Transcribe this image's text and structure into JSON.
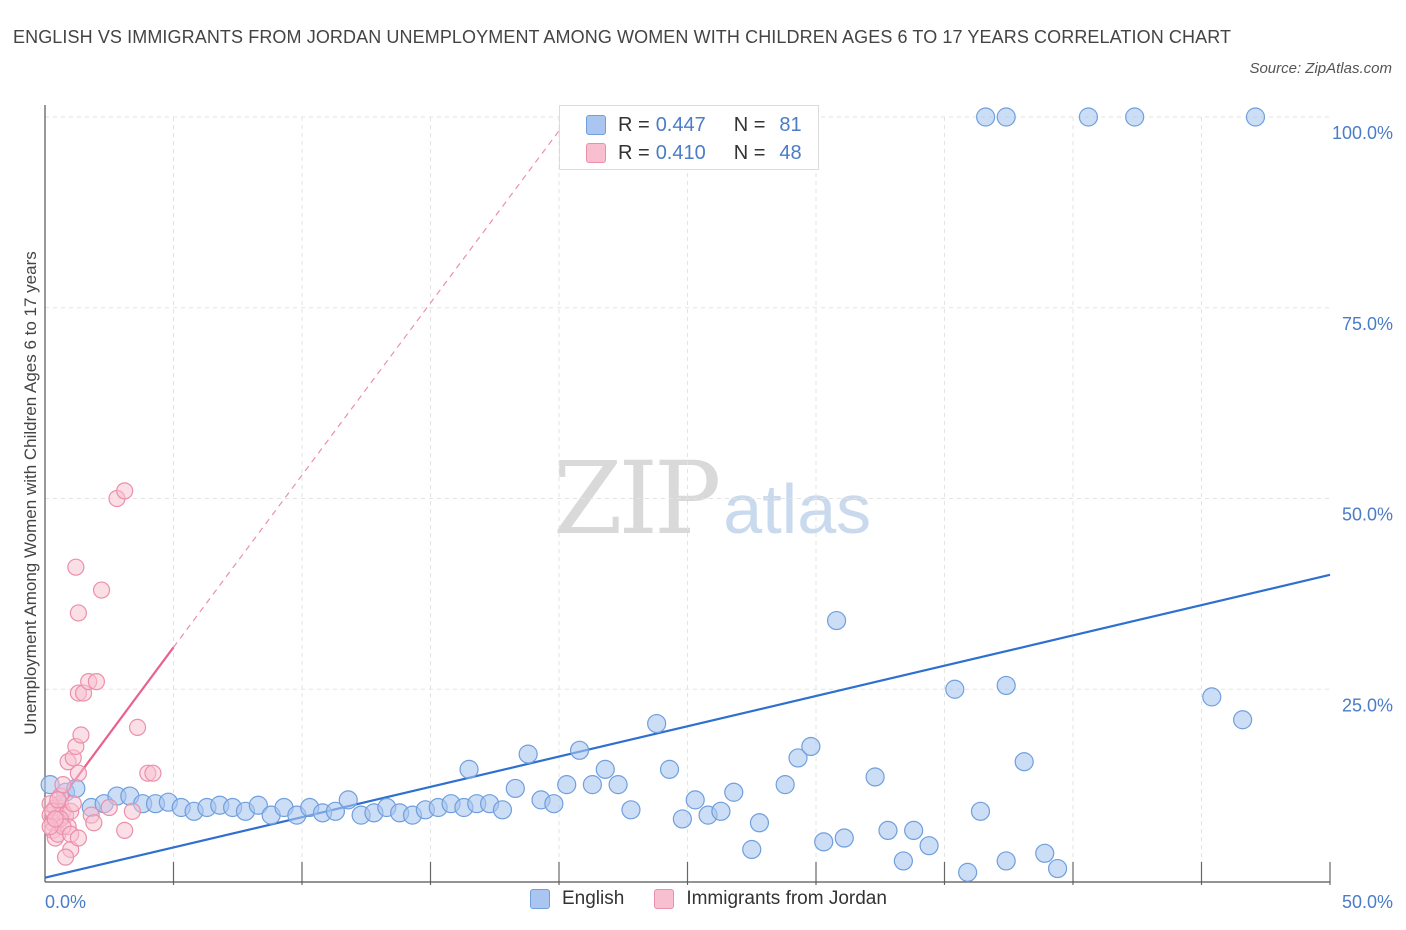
{
  "title": "ENGLISH VS IMMIGRANTS FROM JORDAN UNEMPLOYMENT AMONG WOMEN WITH CHILDREN AGES 6 TO 17 YEARS CORRELATION CHART",
  "source": "Source: ZipAtlas.com",
  "watermark": {
    "zip": "ZIP",
    "atlas": "atlas"
  },
  "colors": {
    "english_fill": "#aac6f0",
    "english_stroke": "#6f9fdd",
    "english_line": "#2f6fd0",
    "jordan_fill": "#f7bfd0",
    "jordan_stroke": "#ec8fab",
    "jordan_line": "#e8628c",
    "tick_label": "#4a7cc7",
    "grid": "#e3e3e3"
  },
  "legend": {
    "rows": [
      {
        "r_label": "R =",
        "r_value": "0.447",
        "n_label": "N =",
        "n_value": "81"
      },
      {
        "r_label": "R =",
        "r_value": "0.410",
        "n_label": "N =",
        "n_value": "48"
      }
    ]
  },
  "bottom_legend": [
    "English",
    "Immigrants from Jordan"
  ],
  "chart_data": {
    "type": "scatter",
    "title": "ENGLISH VS IMMIGRANTS FROM JORDAN UNEMPLOYMENT AMONG WOMEN WITH CHILDREN AGES 6 TO 17 YEARS CORRELATION CHART",
    "xlabel": "",
    "ylabel": "Unemployment Among Women with Children Ages 6 to 17 years",
    "xlim": [
      0,
      50
    ],
    "ylim": [
      0,
      100
    ],
    "x_tick_labels": [
      "0.0%",
      "50.0%"
    ],
    "y_ticks": [
      25,
      50,
      75,
      100
    ],
    "y_tick_labels": [
      "25.0%",
      "50.0%",
      "75.0%",
      "100.0%"
    ],
    "grid": true,
    "legend_position": "top-center",
    "series": [
      {
        "name": "English",
        "r": 0.447,
        "n": 81,
        "trend": {
          "x": [
            0,
            50
          ],
          "y": [
            0.3,
            40.0
          ]
        },
        "points": [
          [
            0.2,
            12.5
          ],
          [
            0.8,
            11.5
          ],
          [
            1.2,
            12.0
          ],
          [
            1.8,
            9.5
          ],
          [
            2.3,
            10.0
          ],
          [
            2.8,
            11.0
          ],
          [
            3.3,
            11.0
          ],
          [
            3.8,
            10.0
          ],
          [
            4.3,
            10.0
          ],
          [
            4.8,
            10.2
          ],
          [
            5.3,
            9.5
          ],
          [
            5.8,
            9.0
          ],
          [
            6.3,
            9.5
          ],
          [
            6.8,
            9.8
          ],
          [
            7.3,
            9.5
          ],
          [
            7.8,
            9.0
          ],
          [
            8.3,
            9.8
          ],
          [
            8.8,
            8.5
          ],
          [
            9.3,
            9.5
          ],
          [
            9.8,
            8.5
          ],
          [
            10.3,
            9.5
          ],
          [
            10.8,
            8.8
          ],
          [
            11.3,
            9.0
          ],
          [
            11.8,
            10.5
          ],
          [
            12.3,
            8.5
          ],
          [
            12.8,
            8.8
          ],
          [
            13.3,
            9.5
          ],
          [
            13.8,
            8.8
          ],
          [
            14.3,
            8.5
          ],
          [
            14.8,
            9.2
          ],
          [
            15.3,
            9.5
          ],
          [
            15.8,
            10.0
          ],
          [
            16.3,
            9.5
          ],
          [
            16.8,
            10.0
          ],
          [
            16.5,
            14.5
          ],
          [
            17.3,
            10.0
          ],
          [
            17.8,
            9.2
          ],
          [
            18.3,
            12.0
          ],
          [
            18.8,
            16.5
          ],
          [
            19.3,
            10.5
          ],
          [
            19.8,
            10.0
          ],
          [
            20.3,
            12.5
          ],
          [
            20.8,
            17.0
          ],
          [
            21.3,
            12.5
          ],
          [
            21.8,
            14.5
          ],
          [
            22.3,
            12.5
          ],
          [
            22.8,
            9.2
          ],
          [
            23.8,
            20.5
          ],
          [
            24.3,
            14.5
          ],
          [
            24.8,
            8.0
          ],
          [
            25.3,
            10.5
          ],
          [
            25.8,
            8.5
          ],
          [
            26.3,
            9.0
          ],
          [
            26.8,
            11.5
          ],
          [
            27.5,
            4.0
          ],
          [
            27.8,
            7.5
          ],
          [
            28.8,
            12.5
          ],
          [
            29.3,
            16.0
          ],
          [
            29.8,
            17.5
          ],
          [
            30.3,
            5.0
          ],
          [
            30.8,
            34.0
          ],
          [
            31.1,
            5.5
          ],
          [
            32.3,
            13.5
          ],
          [
            32.8,
            6.5
          ],
          [
            33.4,
            2.5
          ],
          [
            33.8,
            6.5
          ],
          [
            34.4,
            4.5
          ],
          [
            35.4,
            25.0
          ],
          [
            35.9,
            1.0
          ],
          [
            36.4,
            9.0
          ],
          [
            37.4,
            2.5
          ],
          [
            37.4,
            25.5
          ],
          [
            38.1,
            15.5
          ],
          [
            38.9,
            3.5
          ],
          [
            39.4,
            1.5
          ],
          [
            45.4,
            24.0
          ],
          [
            46.6,
            21.0
          ],
          [
            36.6,
            100
          ],
          [
            37.4,
            100
          ],
          [
            40.6,
            100
          ],
          [
            42.4,
            100
          ],
          [
            47.1,
            100
          ]
        ]
      },
      {
        "name": "Immigrants from Jordan",
        "r": 0.41,
        "n": 48,
        "trend": {
          "x": [
            0,
            5.0
          ],
          "y": [
            7.8,
            30.5
          ]
        },
        "trend_extended": {
          "x": [
            5.0,
            20.4
          ],
          "y": [
            30.5,
            100
          ]
        },
        "points": [
          [
            0.2,
            8.5
          ],
          [
            0.3,
            7.5
          ],
          [
            0.4,
            9.5
          ],
          [
            0.5,
            8.0
          ],
          [
            0.6,
            10.0
          ],
          [
            0.7,
            9.0
          ],
          [
            0.3,
            6.5
          ],
          [
            0.4,
            5.5
          ],
          [
            0.6,
            11.0
          ],
          [
            0.7,
            12.5
          ],
          [
            0.8,
            8.5
          ],
          [
            0.5,
            6.0
          ],
          [
            0.9,
            7.0
          ],
          [
            1.0,
            9.0
          ],
          [
            0.9,
            15.5
          ],
          [
            1.0,
            4.0
          ],
          [
            0.8,
            3.0
          ],
          [
            1.1,
            16.0
          ],
          [
            1.2,
            17.5
          ],
          [
            1.3,
            14.0
          ],
          [
            1.4,
            19.0
          ],
          [
            1.2,
            41.0
          ],
          [
            1.3,
            35.0
          ],
          [
            1.3,
            24.5
          ],
          [
            1.5,
            24.5
          ],
          [
            1.7,
            26.0
          ],
          [
            1.8,
            8.5
          ],
          [
            1.9,
            7.5
          ],
          [
            2.0,
            26.0
          ],
          [
            2.2,
            38.0
          ],
          [
            2.5,
            9.5
          ],
          [
            2.8,
            50.0
          ],
          [
            3.1,
            51.0
          ],
          [
            3.1,
            6.5
          ],
          [
            3.4,
            9.0
          ],
          [
            3.6,
            20.0
          ],
          [
            4.0,
            14.0
          ],
          [
            4.2,
            14.0
          ],
          [
            0.2,
            10.0
          ],
          [
            0.3,
            9.0
          ],
          [
            0.5,
            10.5
          ],
          [
            0.6,
            8.0
          ],
          [
            0.7,
            7.0
          ],
          [
            0.2,
            7.0
          ],
          [
            0.4,
            8.0
          ],
          [
            1.0,
            6.0
          ],
          [
            1.1,
            10.0
          ],
          [
            1.3,
            5.5
          ]
        ]
      }
    ]
  }
}
